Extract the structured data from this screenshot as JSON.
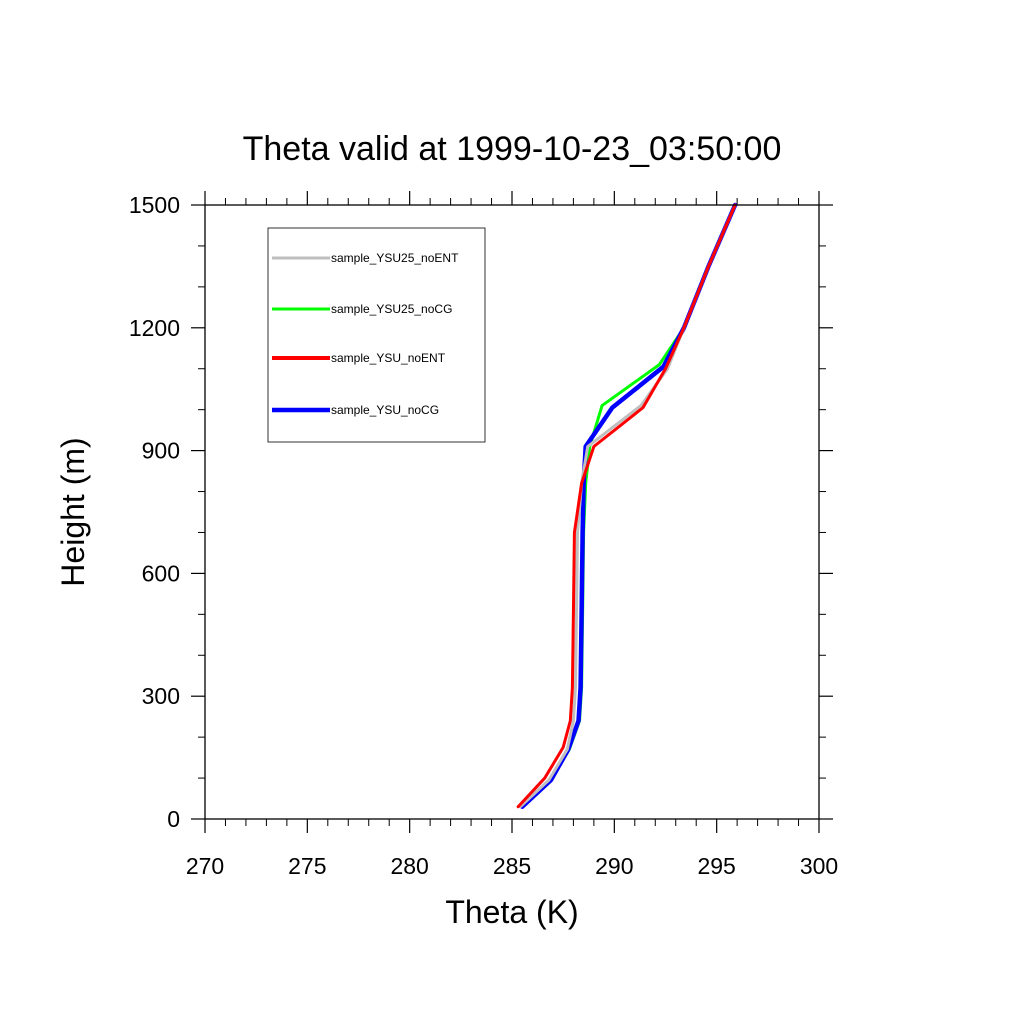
{
  "chart_data": {
    "type": "line",
    "title": "Theta valid at 1999-10-23_03:50:00",
    "xlabel": "Theta (K)",
    "ylabel": "Height (m)",
    "xlim": [
      270,
      300
    ],
    "ylim": [
      0,
      1500
    ],
    "xticks": [
      270,
      275,
      280,
      285,
      290,
      295,
      300
    ],
    "yticks": [
      0,
      300,
      600,
      900,
      1200,
      1500
    ],
    "grid": false,
    "legend_position": "top-left",
    "series": [
      {
        "name": "sample_YSU25_noENT",
        "color": "#bfbfbf",
        "points": [
          [
            285.4,
            30
          ],
          [
            286.8,
            95
          ],
          [
            287.7,
            170
          ],
          [
            288.0,
            240
          ],
          [
            288.1,
            320
          ],
          [
            288.15,
            500
          ],
          [
            288.2,
            700
          ],
          [
            288.4,
            820
          ],
          [
            288.7,
            910
          ],
          [
            291.3,
            1010
          ],
          [
            292.6,
            1100
          ],
          [
            293.4,
            1200
          ],
          [
            294.6,
            1350
          ],
          [
            295.9,
            1500
          ]
        ]
      },
      {
        "name": "sample_YSU25_noCG",
        "color": "#00ff00",
        "points": [
          [
            285.5,
            30
          ],
          [
            286.9,
            95
          ],
          [
            287.8,
            170
          ],
          [
            288.3,
            240
          ],
          [
            288.4,
            320
          ],
          [
            288.45,
            500
          ],
          [
            288.5,
            700
          ],
          [
            288.6,
            820
          ],
          [
            288.8,
            910
          ],
          [
            289.4,
            1010
          ],
          [
            292.2,
            1110
          ],
          [
            293.4,
            1200
          ],
          [
            294.6,
            1350
          ],
          [
            295.9,
            1500
          ]
        ]
      },
      {
        "name": "sample_YSU_noENT",
        "color": "#ff0000",
        "points": [
          [
            285.3,
            30
          ],
          [
            286.6,
            100
          ],
          [
            287.5,
            175
          ],
          [
            287.85,
            240
          ],
          [
            287.95,
            320
          ],
          [
            288.0,
            500
          ],
          [
            288.05,
            700
          ],
          [
            288.4,
            820
          ],
          [
            289.0,
            910
          ],
          [
            291.4,
            1005
          ],
          [
            292.5,
            1100
          ],
          [
            293.4,
            1200
          ],
          [
            294.6,
            1350
          ],
          [
            295.9,
            1500
          ]
        ]
      },
      {
        "name": "sample_YSU_noCG",
        "color": "#0000ff",
        "points": [
          [
            285.5,
            30
          ],
          [
            286.9,
            95
          ],
          [
            287.75,
            170
          ],
          [
            288.25,
            240
          ],
          [
            288.35,
            320
          ],
          [
            288.4,
            500
          ],
          [
            288.45,
            700
          ],
          [
            288.5,
            820
          ],
          [
            288.6,
            910
          ],
          [
            289.9,
            1005
          ],
          [
            292.4,
            1105
          ],
          [
            293.4,
            1200
          ],
          [
            294.6,
            1350
          ],
          [
            295.9,
            1500
          ]
        ]
      }
    ]
  }
}
